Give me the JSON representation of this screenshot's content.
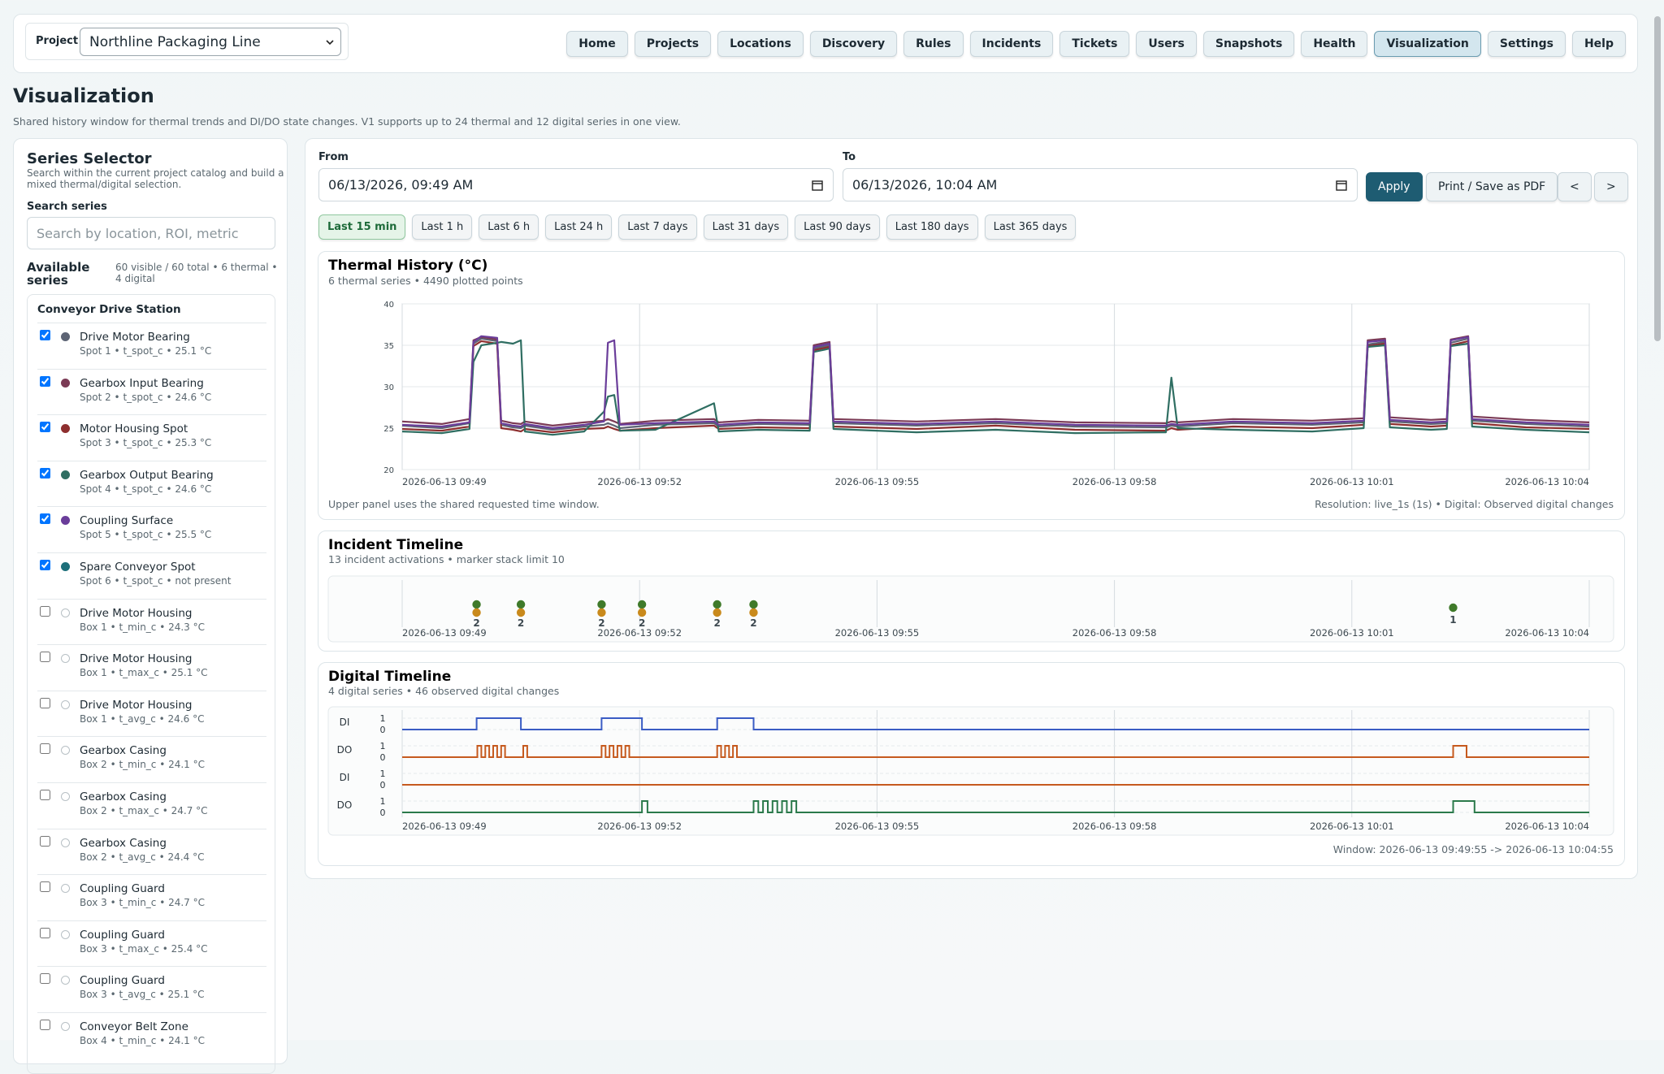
{
  "header": {
    "project_label": "Project",
    "project": "Northline Packaging Line",
    "nav": [
      "Home",
      "Projects",
      "Locations",
      "Discovery",
      "Rules",
      "Incidents",
      "Tickets",
      "Users",
      "Snapshots",
      "Health",
      "Visualization",
      "Settings",
      "Help"
    ],
    "active_nav": "Visualization"
  },
  "page": {
    "title": "Visualization",
    "description": "Shared history window for thermal trends and DI/DO state changes. V1 supports up to 24 thermal and 12 digital series in one view."
  },
  "selector": {
    "title": "Series Selector",
    "description": "Search within the current project catalog and build a mixed thermal/digital selection.",
    "search_label": "Search series",
    "search_placeholder": "Search by location, ROI, metric",
    "available_label": "Available series",
    "counts": "60 visible / 60 total • 6 thermal • 4 digital",
    "group": "Conveyor Drive Station",
    "items": [
      {
        "name": "Drive Motor Bearing",
        "detail": "Spot 1 • t_spot_c • 25.1 °C",
        "color": "#5d6474",
        "checked": true
      },
      {
        "name": "Gearbox Input Bearing",
        "detail": "Spot 2 • t_spot_c • 24.6 °C",
        "color": "#7b3a55",
        "checked": true
      },
      {
        "name": "Motor Housing Spot",
        "detail": "Spot 3 • t_spot_c • 25.3 °C",
        "color": "#8e2f2f",
        "checked": true
      },
      {
        "name": "Gearbox Output Bearing",
        "detail": "Spot 4 • t_spot_c • 24.6 °C",
        "color": "#2f6e62",
        "checked": true
      },
      {
        "name": "Coupling Surface",
        "detail": "Spot 5 • t_spot_c • 25.5 °C",
        "color": "#6a3d9a",
        "checked": true
      },
      {
        "name": "Spare Conveyor Spot",
        "detail": "Spot 6 • t_spot_c • not present",
        "color": "#1d6f7a",
        "checked": true
      },
      {
        "name": "Drive Motor Housing",
        "detail": "Box 1 • t_min_c • 24.3 °C",
        "checked": false
      },
      {
        "name": "Drive Motor Housing",
        "detail": "Box 1 • t_max_c • 25.1 °C",
        "checked": false
      },
      {
        "name": "Drive Motor Housing",
        "detail": "Box 1 • t_avg_c • 24.6 °C",
        "checked": false
      },
      {
        "name": "Gearbox Casing",
        "detail": "Box 2 • t_min_c • 24.1 °C",
        "checked": false
      },
      {
        "name": "Gearbox Casing",
        "detail": "Box 2 • t_max_c • 24.7 °C",
        "checked": false
      },
      {
        "name": "Gearbox Casing",
        "detail": "Box 2 • t_avg_c • 24.4 °C",
        "checked": false
      },
      {
        "name": "Coupling Guard",
        "detail": "Box 3 • t_min_c • 24.7 °C",
        "checked": false
      },
      {
        "name": "Coupling Guard",
        "detail": "Box 3 • t_max_c • 25.4 °C",
        "checked": false
      },
      {
        "name": "Coupling Guard",
        "detail": "Box 3 • t_avg_c • 25.1 °C",
        "checked": false
      },
      {
        "name": "Conveyor Belt Zone",
        "detail": "Box 4 • t_min_c • 24.1 °C",
        "checked": false
      }
    ]
  },
  "controls": {
    "from_label": "From",
    "from": "06/13/2026, 09:49 AM",
    "to_label": "To",
    "to": "06/13/2026, 10:04 AM",
    "apply": "Apply",
    "print": "Print / Save as PDF",
    "prev": "<",
    "next": ">",
    "presets": [
      "Last 15 min",
      "Last 1 h",
      "Last 6 h",
      "Last 24 h",
      "Last 7 days",
      "Last 31 days",
      "Last 90 days",
      "Last 180 days",
      "Last 365 days"
    ],
    "active_preset": "Last 15 min"
  },
  "time_axis": {
    "xlim": [
      0,
      15
    ],
    "xticks": [
      {
        "value": 0,
        "label": "2026-06-13 09:49"
      },
      {
        "value": 3,
        "label": "2026-06-13 09:52"
      },
      {
        "value": 6,
        "label": "2026-06-13 09:55"
      },
      {
        "value": 9,
        "label": "2026-06-13 09:58"
      },
      {
        "value": 12,
        "label": "2026-06-13 10:01"
      },
      {
        "value": 15,
        "label": "2026-06-13 10:04"
      }
    ]
  },
  "thermal": {
    "type": "line",
    "title": "Thermal History (°C)",
    "subtitle": "6 thermal series • 4490 plotted points",
    "ylim": [
      20,
      40
    ],
    "yticks": [
      20,
      25,
      30,
      35,
      40
    ],
    "grid": true,
    "note_left": "Upper panel uses the shared requested time window.",
    "note_right": "Resolution: live_1s (1s) • Digital: Observed digital changes",
    "x": [
      0,
      0.5,
      0.85,
      0.9,
      1.0,
      1.2,
      1.25,
      1.4,
      1.5,
      1.55,
      1.9,
      2.3,
      2.55,
      2.6,
      2.68,
      2.75,
      3.2,
      3.94,
      4.0,
      4.5,
      5.15,
      5.2,
      5.4,
      5.45,
      6.5,
      7.5,
      8.5,
      9.65,
      9.72,
      9.8,
      10.5,
      11.5,
      12.15,
      12.2,
      12.42,
      12.48,
      13.0,
      13.2,
      13.25,
      13.47,
      13.52,
      14.2,
      15
    ],
    "series": [
      {
        "color": "#5d6474",
        "values": [
          25.3,
          25.0,
          25.6,
          35.2,
          35.8,
          35.5,
          25.4,
          25.1,
          25.0,
          25.3,
          24.8,
          25.2,
          25.4,
          25.6,
          25.3,
          25.0,
          25.4,
          25.6,
          25.2,
          25.5,
          25.4,
          34.6,
          35.0,
          25.6,
          25.3,
          25.6,
          25.2,
          25.1,
          25.3,
          25.2,
          25.6,
          25.4,
          25.7,
          35.1,
          35.4,
          25.8,
          25.5,
          25.6,
          35.3,
          35.8,
          25.9,
          25.5,
          25.2
        ]
      },
      {
        "color": "#7b3a55",
        "values": [
          25.8,
          25.5,
          26.1,
          35.6,
          36.0,
          35.7,
          25.9,
          25.6,
          25.5,
          25.8,
          25.3,
          25.7,
          25.9,
          26.1,
          25.8,
          25.5,
          25.9,
          26.1,
          25.7,
          26.0,
          25.9,
          35.0,
          35.4,
          26.1,
          25.8,
          26.1,
          25.7,
          25.6,
          25.8,
          25.7,
          26.1,
          25.9,
          26.2,
          35.6,
          35.8,
          26.3,
          26.0,
          26.1,
          35.7,
          36.1,
          26.4,
          26.0,
          25.7
        ]
      },
      {
        "color": "#8e2f2f",
        "values": [
          24.9,
          24.7,
          25.2,
          34.9,
          35.5,
          35.2,
          25.0,
          24.8,
          24.6,
          24.9,
          24.5,
          24.9,
          25.0,
          25.2,
          24.9,
          24.7,
          25.0,
          25.3,
          24.9,
          25.1,
          25.0,
          34.4,
          34.8,
          25.2,
          24.9,
          25.3,
          24.8,
          24.7,
          25.0,
          24.8,
          25.2,
          25.0,
          25.4,
          34.9,
          35.2,
          25.5,
          25.2,
          25.3,
          35.0,
          35.5,
          25.6,
          25.1,
          24.9
        ]
      },
      {
        "color": "#2f6e62",
        "values": [
          24.6,
          24.4,
          24.9,
          33.0,
          35.0,
          35.3,
          35.4,
          35.2,
          35.6,
          24.6,
          24.2,
          24.6,
          27.0,
          28.8,
          29.0,
          24.7,
          24.8,
          28.0,
          24.6,
          24.8,
          24.7,
          34.2,
          34.6,
          24.9,
          24.5,
          24.8,
          24.4,
          24.5,
          31.1,
          25.0,
          24.8,
          24.6,
          25.0,
          34.8,
          35.0,
          25.1,
          24.8,
          24.9,
          34.9,
          35.2,
          25.2,
          24.8,
          24.5
        ]
      },
      {
        "color": "#6a3d9a",
        "values": [
          25.4,
          25.2,
          25.7,
          35.4,
          36.1,
          35.9,
          25.6,
          25.3,
          25.2,
          25.5,
          25.0,
          25.4,
          25.8,
          35.3,
          35.6,
          25.4,
          25.6,
          25.8,
          25.4,
          25.7,
          25.6,
          34.8,
          35.2,
          25.8,
          25.5,
          25.8,
          25.4,
          25.3,
          25.5,
          25.4,
          25.8,
          25.6,
          25.9,
          35.4,
          35.6,
          26.0,
          25.7,
          25.8,
          35.6,
          36.0,
          26.1,
          25.7,
          25.4
        ]
      }
    ]
  },
  "incidents": {
    "type": "markers",
    "title": "Incident Timeline",
    "subtitle": "13 incident activations • marker stack limit 10",
    "x": [
      0.94,
      1.5,
      2.52,
      3.03,
      3.98,
      4.44,
      13.28
    ],
    "counts": [
      2,
      2,
      2,
      2,
      2,
      2,
      1
    ],
    "colors": [
      "#3f7a2a",
      "#c98a1c"
    ]
  },
  "digital": {
    "type": "step",
    "title": "Digital Timeline",
    "subtitle": "4 digital series • 46 observed digital changes",
    "yticks": [
      0,
      1
    ],
    "window": "Window: 2026-06-13 09:49:55 -> 2026-06-13 10:04:55",
    "series": [
      {
        "label": "DI",
        "color": "#3a5cc4",
        "x": [
          0,
          0.94,
          1.5,
          2.52,
          3.03,
          3.98,
          4.44,
          15
        ],
        "values": [
          0,
          1,
          0,
          1,
          0,
          1,
          0,
          0
        ]
      },
      {
        "label": "DO",
        "color": "#c65a1e",
        "x": [
          0,
          0.95,
          1.0,
          1.05,
          1.1,
          1.15,
          1.2,
          1.25,
          1.3,
          1.53,
          1.58,
          2.52,
          2.57,
          2.62,
          2.67,
          2.72,
          2.77,
          2.82,
          2.87,
          3.98,
          4.03,
          4.08,
          4.13,
          4.18,
          4.23,
          13.28,
          13.45,
          15
        ],
        "values": [
          0,
          1,
          0,
          1,
          0,
          1,
          0,
          1,
          0,
          1,
          0,
          1,
          0,
          1,
          0,
          1,
          0,
          1,
          0,
          1,
          0,
          1,
          0,
          1,
          0,
          1,
          0,
          0
        ]
      },
      {
        "label": "DI",
        "color": "#c65a1e",
        "x": [
          0,
          15
        ],
        "values": [
          0,
          0
        ]
      },
      {
        "label": "DO",
        "color": "#2b7a4b",
        "x": [
          0,
          3.03,
          3.1,
          4.44,
          4.5,
          4.56,
          4.62,
          4.68,
          4.74,
          4.8,
          4.86,
          4.92,
          4.98,
          13.28,
          13.55,
          15
        ],
        "values": [
          0,
          1,
          0,
          1,
          0,
          1,
          0,
          1,
          0,
          1,
          0,
          1,
          0,
          1,
          0,
          0
        ]
      }
    ]
  }
}
